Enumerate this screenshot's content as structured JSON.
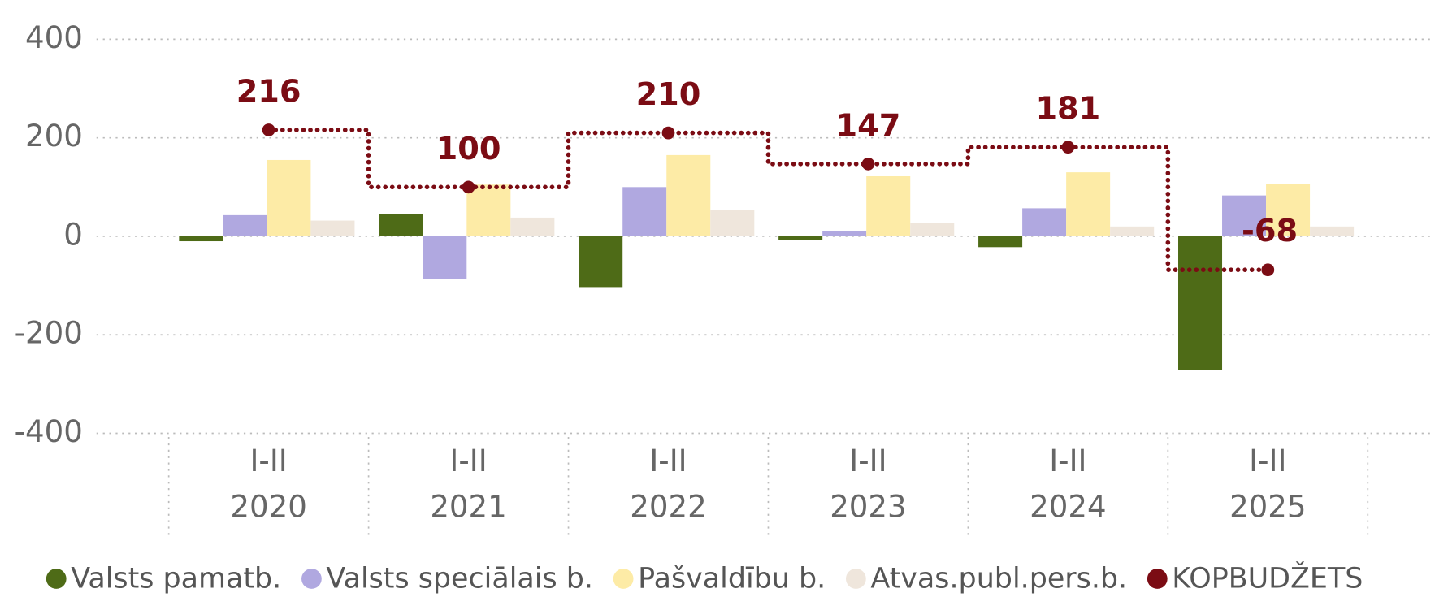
{
  "chart_data": {
    "type": "bar",
    "categories": [
      [
        "I-II",
        "2020"
      ],
      [
        "I-II",
        "2021"
      ],
      [
        "I-II",
        "2022"
      ],
      [
        "I-II",
        "2023"
      ],
      [
        "I-II",
        "2024"
      ],
      [
        "I-II",
        "2025"
      ]
    ],
    "series": [
      {
        "name": "Valsts pamatb.",
        "color": "#4e6b17",
        "values": [
          -10,
          45,
          -103,
          -7,
          -22,
          -272
        ]
      },
      {
        "name": "Valsts speciālais b.",
        "color": "#b0a8e0",
        "values": [
          43,
          -87,
          100,
          10,
          57,
          83
        ]
      },
      {
        "name": "Pašvaldību b.",
        "color": "#fdeba6",
        "values": [
          155,
          105,
          165,
          122,
          130,
          106
        ]
      },
      {
        "name": "Atvas.publ.pers.b.",
        "color": "#efe6dc",
        "values": [
          32,
          38,
          53,
          27,
          20,
          20
        ]
      },
      {
        "name": "KOPBUDŽETS",
        "color": "#7b0c14",
        "type": "step",
        "values": [
          216,
          100,
          210,
          147,
          181,
          -68
        ]
      }
    ],
    "ylim": [
      -400,
      400
    ],
    "yticks": [
      -400,
      -200,
      0,
      200,
      400
    ],
    "grid": true
  }
}
